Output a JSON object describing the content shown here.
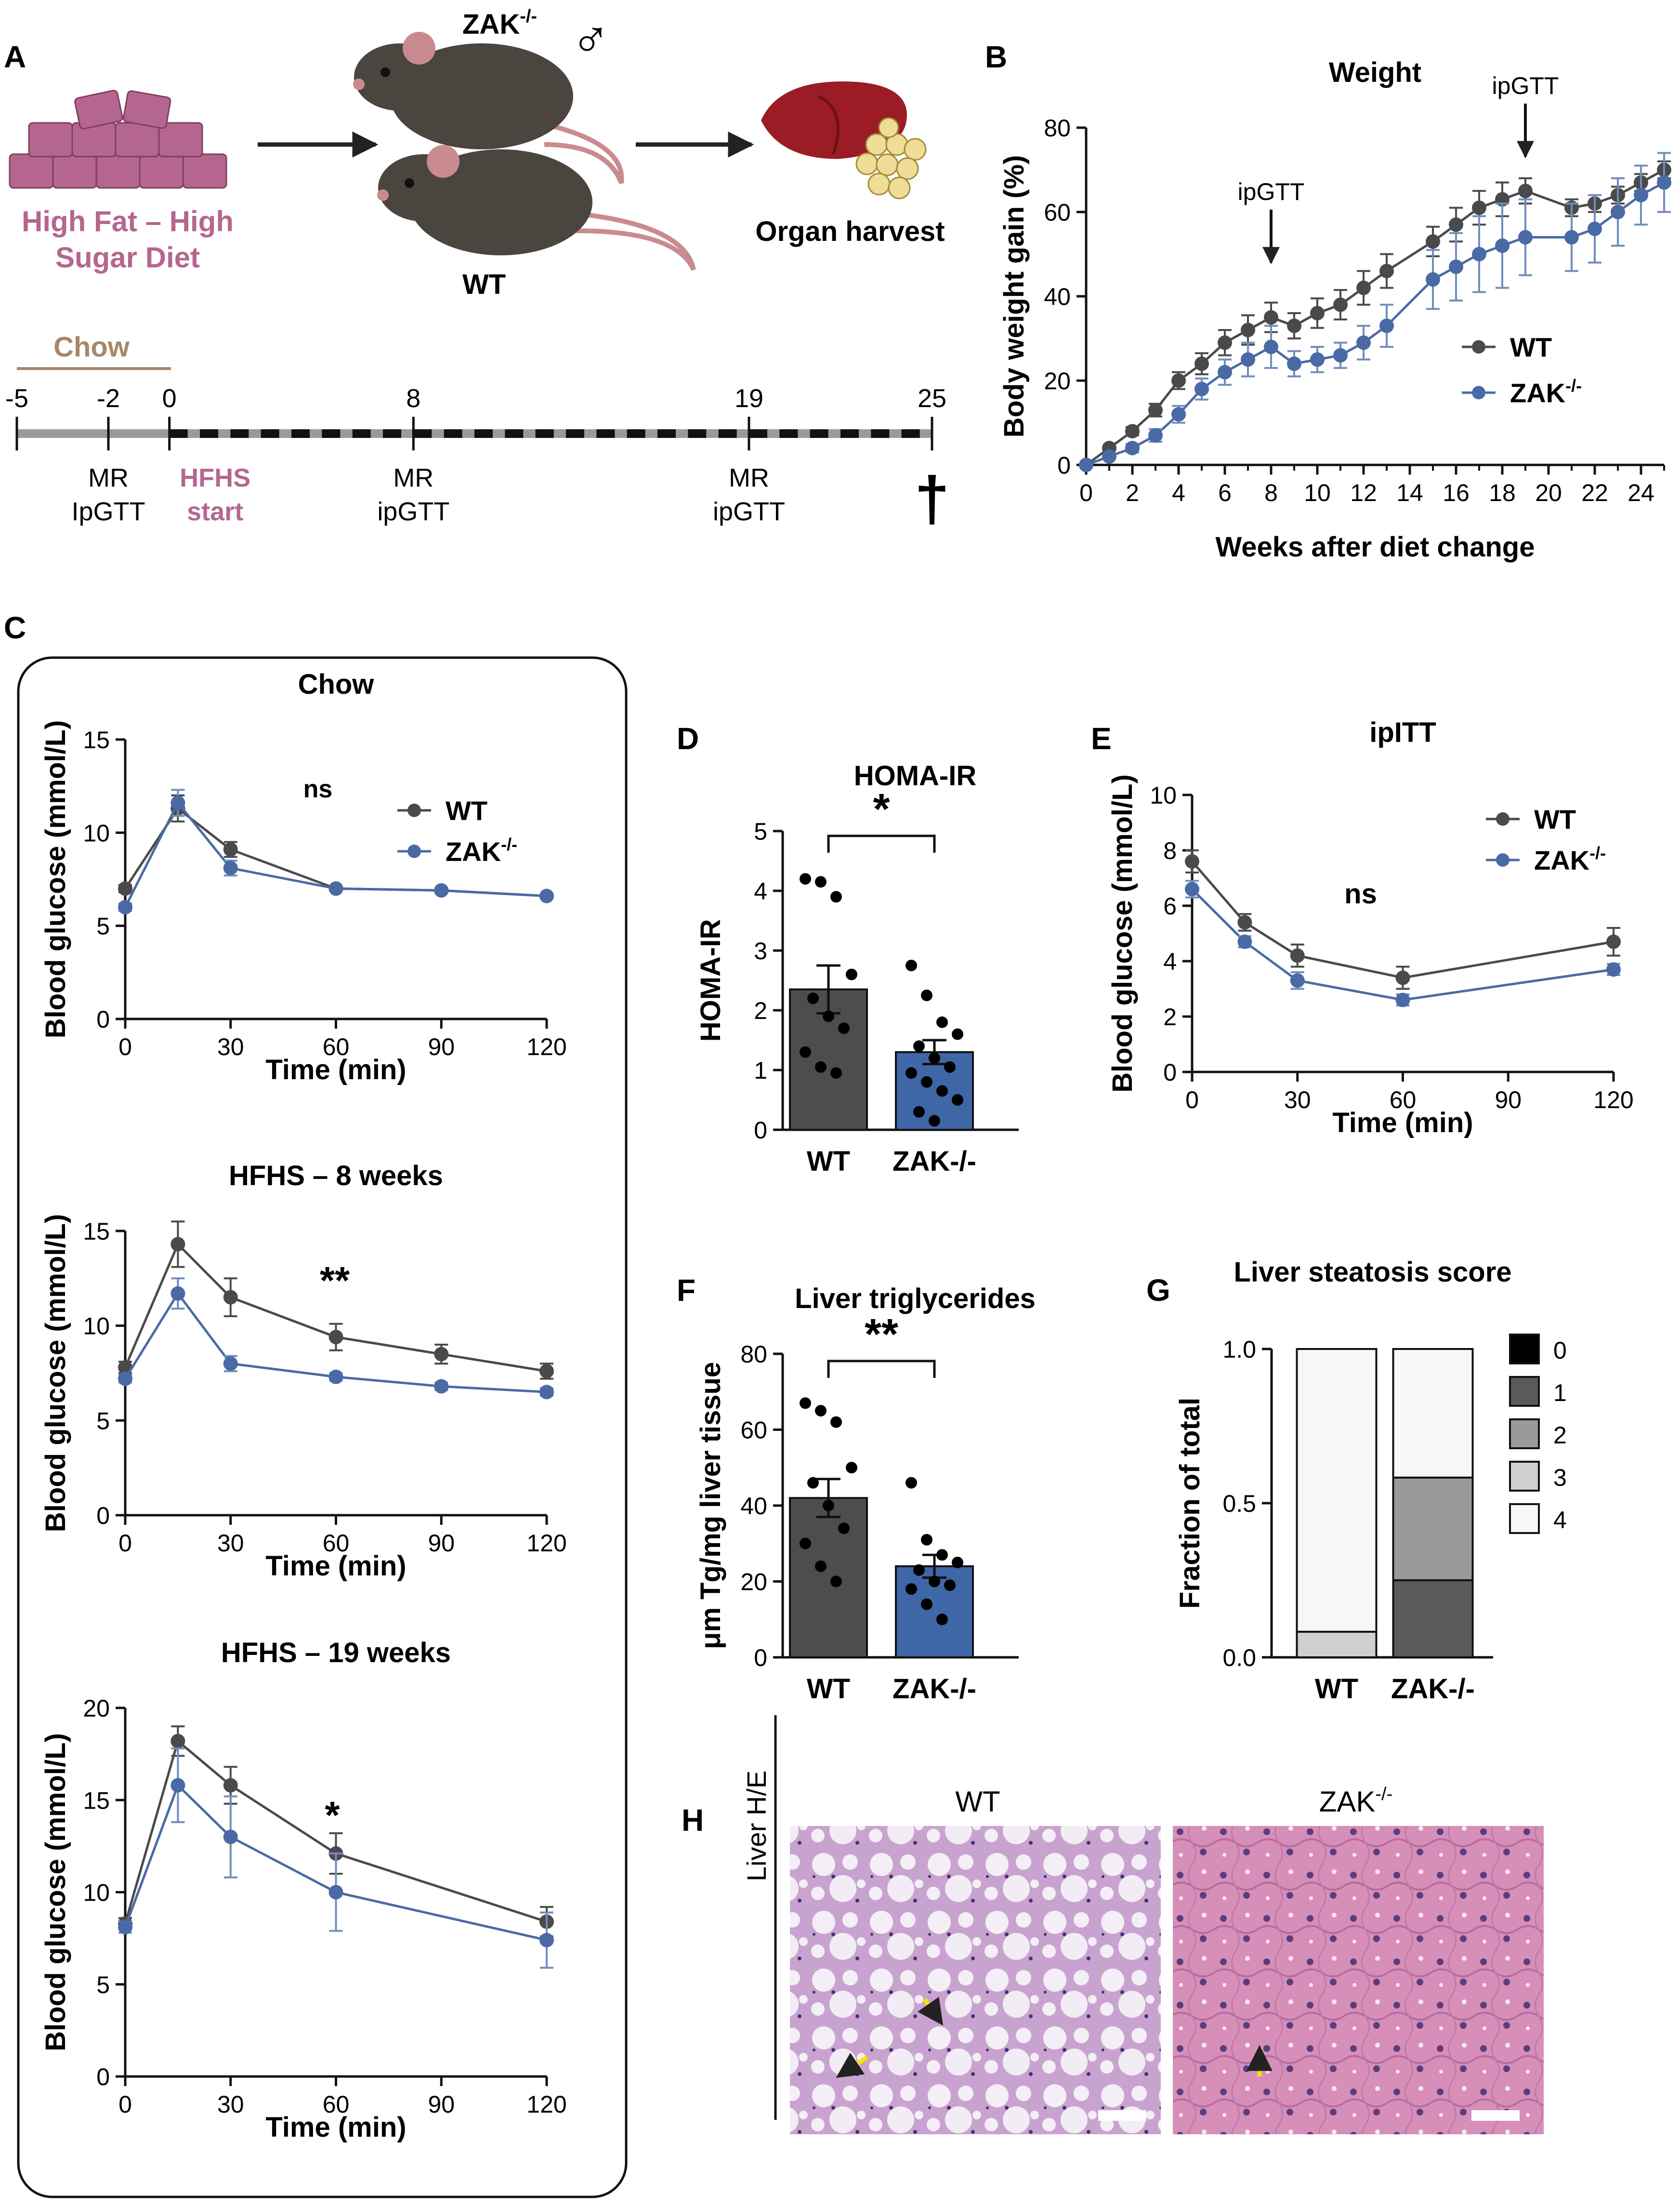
{
  "panel_letters": {
    "a": "A",
    "b": "B",
    "c": "C",
    "d": "D",
    "e": "E",
    "f": "F",
    "g": "G",
    "h": "H"
  },
  "panel_a": {
    "diet_label_1": "High Fat – High",
    "diet_label_2": "Sugar Diet",
    "zak_label": "ZAK",
    "zak_sup": "-/-",
    "male_symbol": "♂",
    "wt_label": "WT",
    "organ_label": "Organ harvest",
    "chow_label": "Chow",
    "timeline_ticks": [
      "-5",
      "-2",
      "0",
      "8",
      "19",
      "25"
    ],
    "timeline_events": [
      {
        "week": "-2",
        "line1": "MR",
        "line2": "IpGTT"
      },
      {
        "week": "0",
        "line1": "HFHS",
        "line2": "start"
      },
      {
        "week": "8",
        "line1": "MR",
        "line2": "ipGTT"
      },
      {
        "week": "19",
        "line1": "MR",
        "line2": "ipGTT"
      }
    ],
    "end_symbol": "†",
    "colors": {
      "diet": "#b5668f",
      "chow": "#a5876a"
    }
  },
  "legend": {
    "wt": "WT",
    "zak": "ZAK",
    "zak_sup": "-/-"
  },
  "colors": {
    "wt": "#4a4a4a",
    "zak": "#4a6aa5",
    "bar_wt": "#4d4d4d",
    "bar_zak": "#3f66a6",
    "err_zak": "#6f8dbd"
  },
  "chart_data": [
    {
      "id": "B",
      "type": "line",
      "title": "Weight",
      "xlabel": "Weeks after diet change",
      "ylabel": "Body weight gain (%)",
      "xlim": [
        0,
        25
      ],
      "ylim": [
        0,
        80
      ],
      "xticks": [
        0,
        2,
        4,
        6,
        8,
        10,
        12,
        14,
        16,
        18,
        20,
        22,
        24
      ],
      "yticks": [
        0,
        20,
        40,
        60,
        80
      ],
      "annotations": [
        {
          "text": "ipGTT",
          "x": 8
        },
        {
          "text": "ipGTT",
          "x": 19
        }
      ],
      "series": [
        {
          "name": "WT",
          "x": [
            0,
            1,
            2,
            3,
            4,
            5,
            6,
            7,
            8,
            9,
            10,
            11,
            12,
            13,
            15,
            16,
            17,
            18,
            19,
            21,
            22,
            23,
            24,
            25
          ],
          "y": [
            0,
            4,
            8,
            13,
            20,
            24,
            29,
            32,
            35,
            33,
            36,
            38,
            42,
            46,
            53,
            57,
            61,
            63,
            65,
            61,
            62,
            64,
            67,
            70
          ],
          "err": [
            0,
            0.5,
            1,
            1.5,
            2,
            2.5,
            3,
            3.5,
            3.5,
            3,
            3.5,
            3.5,
            4,
            4,
            3.5,
            4,
            4,
            4,
            3,
            2,
            2,
            2,
            2,
            2
          ]
        },
        {
          "name": "ZAK-/-",
          "x": [
            0,
            1,
            2,
            3,
            4,
            5,
            6,
            7,
            8,
            9,
            10,
            11,
            12,
            13,
            15,
            16,
            17,
            18,
            19,
            21,
            22,
            23,
            24,
            25
          ],
          "y": [
            0,
            2,
            4,
            7,
            12,
            18,
            22,
            25,
            28,
            24,
            25,
            26,
            29,
            33,
            44,
            47,
            50,
            52,
            54,
            54,
            56,
            60,
            64,
            67
          ],
          "err": [
            0,
            0.5,
            1,
            1.5,
            2,
            2.5,
            3,
            4,
            5,
            3,
            3,
            3,
            4,
            5,
            7,
            8,
            9,
            10,
            9,
            8,
            8,
            8,
            7,
            7
          ]
        }
      ]
    },
    {
      "id": "C1",
      "type": "line",
      "title": "Chow",
      "annotation": "ns",
      "xlabel": "Time (min)",
      "ylabel": "Blood glucose (mmol/L)",
      "xlim": [
        0,
        120
      ],
      "ylim": [
        0,
        15
      ],
      "xticks": [
        0,
        30,
        60,
        90,
        120
      ],
      "yticks": [
        0,
        5,
        10,
        15
      ],
      "series": [
        {
          "name": "WT",
          "x": [
            0,
            15,
            30,
            60,
            90,
            120
          ],
          "y": [
            7.0,
            11.3,
            9.1,
            7.0,
            6.9,
            6.6
          ],
          "err": [
            0.2,
            0.7,
            0.4,
            0.1,
            0.1,
            0.1
          ]
        },
        {
          "name": "ZAK-/-",
          "x": [
            0,
            15,
            30,
            60,
            90,
            120
          ],
          "y": [
            6.0,
            11.6,
            8.1,
            7.0,
            6.9,
            6.6
          ],
          "err": [
            0.2,
            0.7,
            0.4,
            0.1,
            0.1,
            0.1
          ]
        }
      ]
    },
    {
      "id": "C2",
      "type": "line",
      "title": "HFHS – 8 weeks",
      "annotation": "**",
      "xlabel": "Time (min)",
      "ylabel": "Blood glucose (mmol/L)",
      "xlim": [
        0,
        120
      ],
      "ylim": [
        0,
        15
      ],
      "xticks": [
        0,
        30,
        60,
        90,
        120
      ],
      "yticks": [
        0,
        5,
        10,
        15
      ],
      "series": [
        {
          "name": "WT",
          "x": [
            0,
            15,
            30,
            60,
            90,
            120
          ],
          "y": [
            7.8,
            14.3,
            11.5,
            9.4,
            8.5,
            7.6
          ],
          "err": [
            0.3,
            1.2,
            1.0,
            0.7,
            0.5,
            0.4
          ]
        },
        {
          "name": "ZAK-/-",
          "x": [
            0,
            15,
            30,
            60,
            90,
            120
          ],
          "y": [
            7.2,
            11.7,
            8.0,
            7.3,
            6.8,
            6.5
          ],
          "err": [
            0.2,
            0.8,
            0.4,
            0.2,
            0.2,
            0.2
          ]
        }
      ]
    },
    {
      "id": "C3",
      "type": "line",
      "title": "HFHS – 19 weeks",
      "annotation": "*",
      "xlabel": "Time (min)",
      "ylabel": "Blood glucose (mmol/L)",
      "xlim": [
        0,
        120
      ],
      "ylim": [
        0,
        20
      ],
      "xticks": [
        0,
        30,
        60,
        90,
        120
      ],
      "yticks": [
        0,
        5,
        10,
        15,
        20
      ],
      "series": [
        {
          "name": "WT",
          "x": [
            0,
            15,
            30,
            60,
            120
          ],
          "y": [
            8.3,
            18.2,
            15.8,
            12.1,
            8.4
          ],
          "err": [
            0.3,
            0.8,
            1.0,
            1.1,
            0.8
          ]
        },
        {
          "name": "ZAK-/-",
          "x": [
            0,
            15,
            30,
            60,
            120
          ],
          "y": [
            8.1,
            15.8,
            13.0,
            10.0,
            7.4
          ],
          "err": [
            0.3,
            2.0,
            2.2,
            2.1,
            1.5
          ]
        }
      ]
    },
    {
      "id": "D",
      "type": "bar",
      "title": "HOMA-IR",
      "annotation": "*",
      "xlabel": "",
      "ylabel": "HOMA-IR",
      "categories": [
        "WT",
        "ZAK-/-"
      ],
      "values": [
        2.35,
        1.3
      ],
      "err": [
        0.4,
        0.2
      ],
      "points": [
        [
          4.2,
          4.15,
          3.9,
          2.6,
          2.2,
          1.9,
          1.7,
          1.3,
          1.05,
          0.95
        ],
        [
          2.75,
          2.25,
          1.8,
          1.6,
          1.4,
          1.2,
          1.05,
          0.95,
          0.8,
          0.65,
          0.5,
          0.3,
          0.15
        ]
      ],
      "ylim": [
        0,
        5
      ],
      "yticks": [
        0,
        1,
        2,
        3,
        4,
        5
      ]
    },
    {
      "id": "E",
      "type": "line",
      "title": "ipITT",
      "annotation": "ns",
      "xlabel": "Time (min)",
      "ylabel": "Blood glucose (mmol/L)",
      "xlim": [
        0,
        120
      ],
      "ylim": [
        0,
        10
      ],
      "xticks": [
        0,
        30,
        60,
        90,
        120
      ],
      "yticks": [
        0,
        2,
        4,
        6,
        8,
        10
      ],
      "series": [
        {
          "name": "WT",
          "x": [
            0,
            15,
            30,
            60,
            120
          ],
          "y": [
            7.6,
            5.4,
            4.2,
            3.4,
            4.7
          ],
          "err": [
            0.4,
            0.3,
            0.4,
            0.4,
            0.5
          ]
        },
        {
          "name": "ZAK-/-",
          "x": [
            0,
            15,
            30,
            60,
            120
          ],
          "y": [
            6.6,
            4.7,
            3.3,
            2.6,
            3.7
          ],
          "err": [
            0.3,
            0.2,
            0.3,
            0.2,
            0.2
          ]
        }
      ]
    },
    {
      "id": "F",
      "type": "bar",
      "title": "Liver triglycerides",
      "annotation": "**",
      "xlabel": "",
      "ylabel": "μm Tg/mg liver tissue",
      "categories": [
        "WT",
        "ZAK-/-"
      ],
      "values": [
        42,
        24
      ],
      "err": [
        5,
        3
      ],
      "points": [
        [
          67,
          65,
          62,
          50,
          46,
          40,
          34,
          30,
          24,
          20
        ],
        [
          46,
          31,
          27,
          25,
          23,
          20,
          19,
          18,
          14,
          10
        ]
      ],
      "ylim": [
        0,
        80
      ],
      "yticks": [
        0,
        20,
        40,
        60,
        80
      ]
    },
    {
      "id": "G",
      "type": "bar",
      "stacked": true,
      "title": "Liver steatosis score",
      "xlabel": "",
      "ylabel": "Fraction of total",
      "categories": [
        "WT",
        "ZAK-/-"
      ],
      "series": [
        {
          "name": "0",
          "values": [
            0,
            0
          ],
          "color": "#000000"
        },
        {
          "name": "1",
          "values": [
            0,
            0.25
          ],
          "color": "#5a5a5a"
        },
        {
          "name": "2",
          "values": [
            0,
            0.333
          ],
          "color": "#9a9a9a"
        },
        {
          "name": "3",
          "values": [
            0.083,
            0
          ],
          "color": "#cfcfcf"
        },
        {
          "name": "4",
          "values": [
            0.917,
            0.417
          ],
          "color": "#f7f7f7"
        }
      ],
      "ylim": [
        0,
        1
      ],
      "yticks": [
        "0.0",
        "0.5",
        "1.0"
      ]
    }
  ],
  "panel_h": {
    "row_label": "Liver H/E",
    "col_wt": "WT",
    "col_zak": "ZAK",
    "col_zak_sup": "-/-"
  }
}
